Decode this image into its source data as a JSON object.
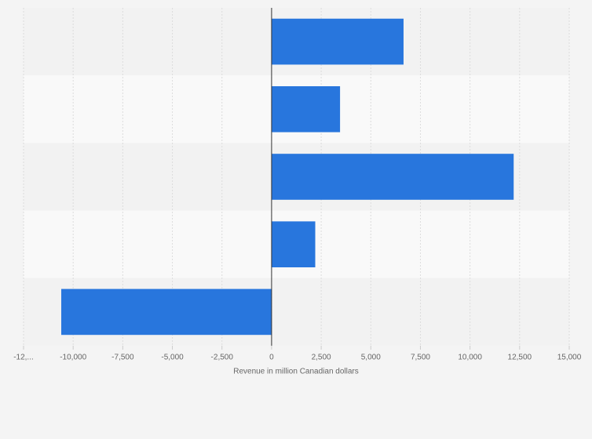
{
  "chart_data": {
    "type": "hbar",
    "x_label": "Revenue in million Canadian dollars",
    "categories": [
      null,
      null,
      null,
      null,
      null
    ],
    "values": [
      6650,
      3450,
      12200,
      2200,
      -10600
    ],
    "color": "#2876dd",
    "xlim": [
      -12500,
      15000
    ],
    "xticks": [
      {
        "value": -12500,
        "label": "-12,..."
      },
      {
        "value": -10000,
        "label": "-10,000"
      },
      {
        "value": -7500,
        "label": "-7,500"
      },
      {
        "value": -5000,
        "label": "-5,000"
      },
      {
        "value": -2500,
        "label": "-2,500"
      },
      0,
      {
        "value": 2500,
        "label": "2,500"
      },
      {
        "value": 5000,
        "label": "5,000"
      },
      {
        "value": 7500,
        "label": "7,500"
      },
      {
        "value": 10000,
        "label": "10,000"
      },
      {
        "value": 12500,
        "label": "12,500"
      },
      {
        "value": 15000,
        "label": "15,000"
      }
    ],
    "grid": true
  }
}
